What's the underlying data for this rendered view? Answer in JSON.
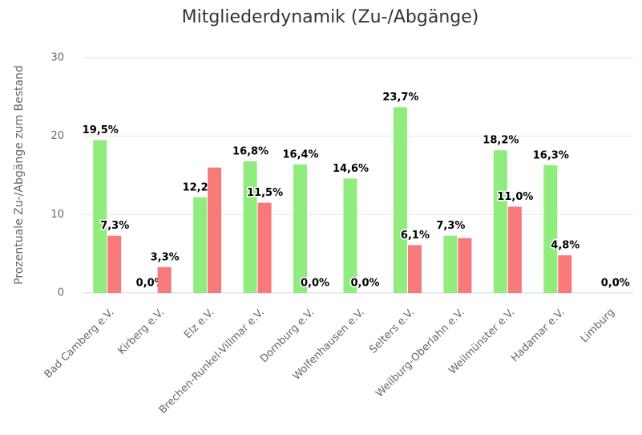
{
  "chart_data": {
    "type": "bar",
    "title": "Mitgliederdynamik (Zu-/Abgänge)",
    "ylabel": "Prozentuale Zu-/Abgänge zum Bestand",
    "categories": [
      "Bad Camberg e.V.",
      "Kirberg e.V.",
      "Elz e.V.",
      "Brechen-Runkel-Villmar e.V.",
      "Dornburg e.V.",
      "Wolfenhausen e.V.",
      "Selters e.V.",
      "Weilburg-Oberlahn e.V.",
      "Weilmünster e.V.",
      "Hadamar e.V.",
      "Limburg"
    ],
    "series": [
      {
        "color": "#90ed7d",
        "values": [
          19.5,
          0,
          12.2,
          16.8,
          16.4,
          14.6,
          23.7,
          7.3,
          18.2,
          16.3,
          0
        ],
        "value_labels": [
          "19,5%",
          "0,0%",
          "12,2%",
          "16,8%",
          "16,4%",
          "14,6%",
          "23,7%",
          "7,3%",
          "18,2%",
          "16,3%",
          null
        ]
      },
      {
        "color": "#f7797a",
        "values": [
          7.3,
          3.3,
          16,
          11.5,
          0,
          0,
          6.1,
          7,
          11.0,
          4.8,
          0
        ],
        "value_labels": [
          "7,3%",
          "3,3%",
          null,
          "11,5%",
          "0,0%",
          "0,0%",
          "6,1%",
          null,
          "11,0%",
          "4,8%",
          "0,0%"
        ]
      }
    ],
    "ylim": [
      0,
      30
    ],
    "yticks": [
      0,
      10,
      20,
      30
    ],
    "grid": true
  }
}
